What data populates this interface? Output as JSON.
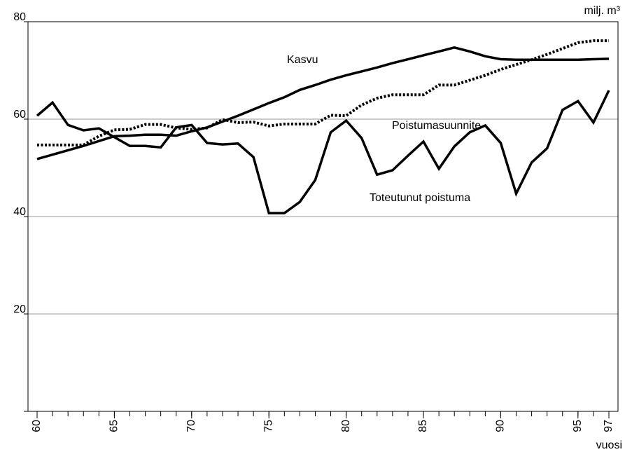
{
  "chart_data": {
    "type": "line",
    "y_unit_label": "milj. m³",
    "x_axis_label": "vuosi",
    "x": [
      60,
      61,
      62,
      63,
      64,
      65,
      66,
      67,
      68,
      69,
      70,
      71,
      72,
      73,
      74,
      75,
      76,
      77,
      78,
      79,
      80,
      81,
      82,
      83,
      84,
      85,
      86,
      87,
      88,
      89,
      90,
      91,
      92,
      93,
      94,
      95,
      96,
      97
    ],
    "series": [
      {
        "name": "Kasvu",
        "color": "#000000",
        "dash": "solid",
        "values": [
          51.8,
          52.7,
          53.6,
          54.5,
          55.5,
          56.5,
          56.6,
          56.8,
          56.8,
          56.6,
          57.5,
          58.3,
          59.5,
          60.7,
          62,
          63.3,
          64.5,
          66,
          67,
          68.1,
          69,
          69.8,
          70.6,
          71.5,
          72.3,
          73.1,
          73.9,
          74.7,
          73.9,
          72.9,
          72.3,
          72.2,
          72.2,
          72.2,
          72.2,
          72.2,
          72.3,
          72.4
        ]
      },
      {
        "name": "Poistumasuunnite",
        "color": "#000000",
        "dash": "dotted",
        "values": [
          54.7,
          54.7,
          54.7,
          54.7,
          56.5,
          57.8,
          57.9,
          58.9,
          58.9,
          58.2,
          57.9,
          58.2,
          59.9,
          59.3,
          59.4,
          58.6,
          59,
          59,
          59,
          60.8,
          60.7,
          62.9,
          64.3,
          65,
          65,
          65,
          67,
          67,
          68,
          69,
          70.2,
          71.2,
          72.2,
          73.3,
          74.5,
          75.7,
          76.1,
          76.1
        ]
      },
      {
        "name": "Toteutunut poistuma",
        "color": "#000000",
        "dash": "solid",
        "values": [
          60.7,
          63.4,
          58.8,
          57.7,
          58.1,
          56.3,
          54.5,
          54.5,
          54.2,
          58.3,
          58.8,
          55.1,
          54.8,
          55,
          52.2,
          40.7,
          40.7,
          43,
          47.5,
          57.3,
          59.7,
          56.1,
          48.6,
          49.5,
          52.5,
          55.4,
          49.8,
          54.4,
          57.3,
          58.7,
          55.1,
          44.7,
          51.1,
          54,
          61.9,
          63.7,
          59.3,
          65.9
        ]
      }
    ],
    "xlim": [
      60,
      97
    ],
    "xticks": [
      60,
      65,
      70,
      75,
      80,
      85,
      90,
      95,
      97
    ],
    "ylim": [
      0,
      80
    ],
    "yticks": [
      20,
      40,
      60,
      80
    ],
    "grid": true
  }
}
